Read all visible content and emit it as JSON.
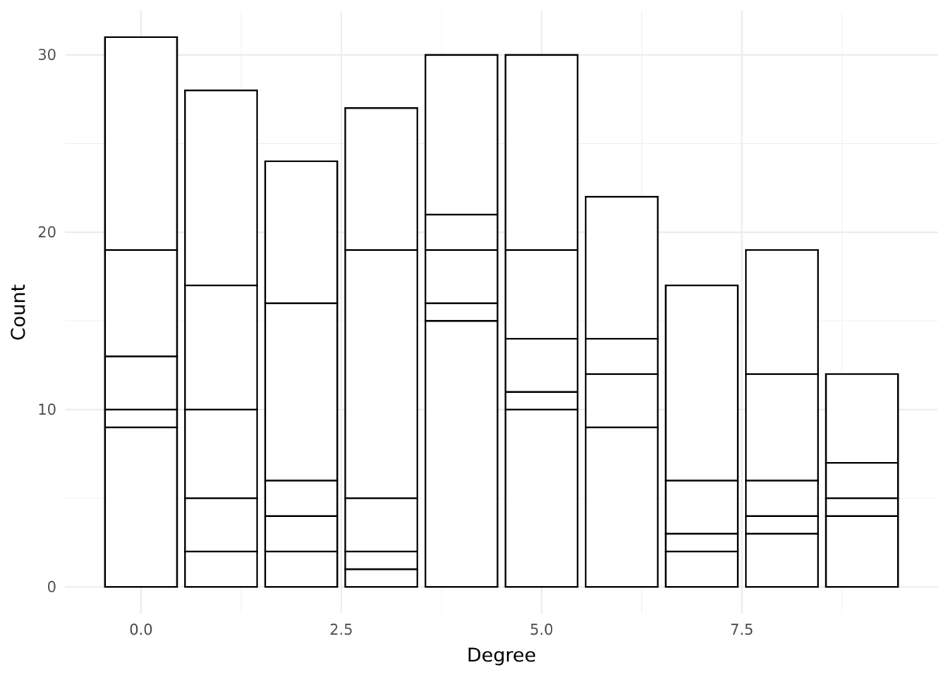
{
  "chart_data": {
    "type": "bar",
    "stacked": true,
    "title": "",
    "xlabel": "Degree",
    "ylabel": "Count",
    "xlim": [
      -0.95,
      9.95
    ],
    "ylim": [
      -1.5,
      32.5
    ],
    "x_ticks": [
      0.0,
      2.5,
      5.0,
      7.5
    ],
    "x_tick_labels": [
      "0.0",
      "2.5",
      "5.0",
      "7.5"
    ],
    "y_ticks": [
      0,
      10,
      20,
      30
    ],
    "y_tick_labels": [
      "0",
      "10",
      "20",
      "30"
    ],
    "x_minor_ticks": [
      1.25,
      3.75,
      6.25,
      8.75
    ],
    "y_minor_ticks": [
      5,
      15,
      25
    ],
    "grid": true,
    "legend": "none",
    "bar_fill": "#ffffff",
    "bar_stroke": "#000000",
    "x": [
      0,
      1,
      2,
      3,
      4,
      5,
      6,
      7,
      8,
      9
    ],
    "totals": [
      31,
      28,
      24,
      27,
      30,
      30,
      22,
      17,
      19,
      12
    ],
    "segment_boundaries": [
      [
        9,
        10,
        13,
        19,
        31
      ],
      [
        2,
        5,
        10,
        17,
        28
      ],
      [
        2,
        4,
        6,
        16,
        24
      ],
      [
        1,
        2,
        5,
        19,
        27
      ],
      [
        15,
        16,
        19,
        21,
        30
      ],
      [
        10,
        11,
        14,
        19,
        30
      ],
      [
        9,
        12,
        14,
        22
      ],
      [
        2,
        3,
        6,
        17
      ],
      [
        3,
        4,
        6,
        12,
        19
      ],
      [
        4,
        5,
        7,
        12
      ]
    ]
  }
}
